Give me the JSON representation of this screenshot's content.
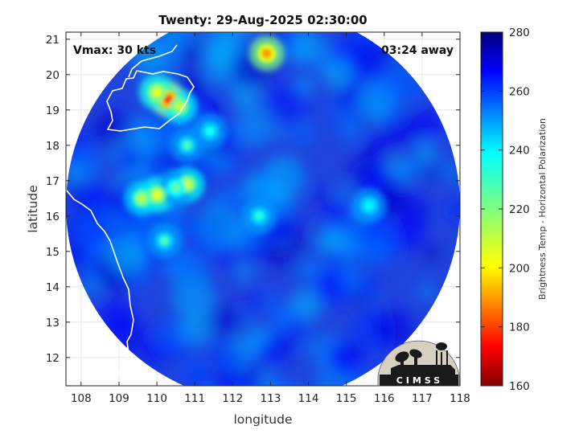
{
  "chart_data": {
    "type": "heatmap",
    "title": "Twenty: 29-Aug-2025 02:30:00",
    "xlabel": "longitude",
    "ylabel": "latitude",
    "xlim": [
      107.6,
      118
    ],
    "ylim": [
      11.2,
      21.2
    ],
    "xticks": [
      108,
      109,
      110,
      111,
      112,
      113,
      114,
      115,
      116,
      117,
      118
    ],
    "yticks": [
      12,
      13,
      14,
      15,
      16,
      17,
      18,
      19,
      20,
      21
    ],
    "grid": true,
    "swath_center": {
      "lon": 112.8,
      "lat": 16.3
    },
    "swath_radius_deg": 5.2,
    "annotations": {
      "vmax": "Vmax: 30 kts",
      "time_away": "03:24 away"
    },
    "colorbar": {
      "label": "Brightness Temp - Horizontal Polarization",
      "min": 160,
      "max": 280,
      "ticks": [
        160,
        180,
        200,
        220,
        240,
        260,
        280
      ],
      "colormap": "jet"
    },
    "convective_features": [
      {
        "lon": 110.0,
        "lat": 16.6,
        "value": 205
      },
      {
        "lon": 109.6,
        "lat": 16.5,
        "value": 212
      },
      {
        "lon": 110.8,
        "lat": 16.9,
        "value": 208
      },
      {
        "lon": 110.5,
        "lat": 16.8,
        "value": 225
      },
      {
        "lon": 110.3,
        "lat": 19.3,
        "value": 180
      },
      {
        "lon": 110.0,
        "lat": 19.5,
        "value": 205
      },
      {
        "lon": 110.6,
        "lat": 19.1,
        "value": 210
      },
      {
        "lon": 112.9,
        "lat": 20.6,
        "value": 190
      },
      {
        "lon": 110.2,
        "lat": 15.3,
        "value": 230
      },
      {
        "lon": 110.8,
        "lat": 18.0,
        "value": 230
      },
      {
        "lon": 111.4,
        "lat": 18.4,
        "value": 238
      },
      {
        "lon": 112.7,
        "lat": 16.0,
        "value": 235
      },
      {
        "lon": 115.6,
        "lat": 16.3,
        "value": 240
      }
    ],
    "coastline_color": "#ffffff"
  },
  "logo": {
    "text": "CIMSS"
  },
  "colors": {
    "background": "#ffffff",
    "axes": "#222222",
    "grid": "#e6e6e6",
    "swath_base": "#1f43de"
  }
}
